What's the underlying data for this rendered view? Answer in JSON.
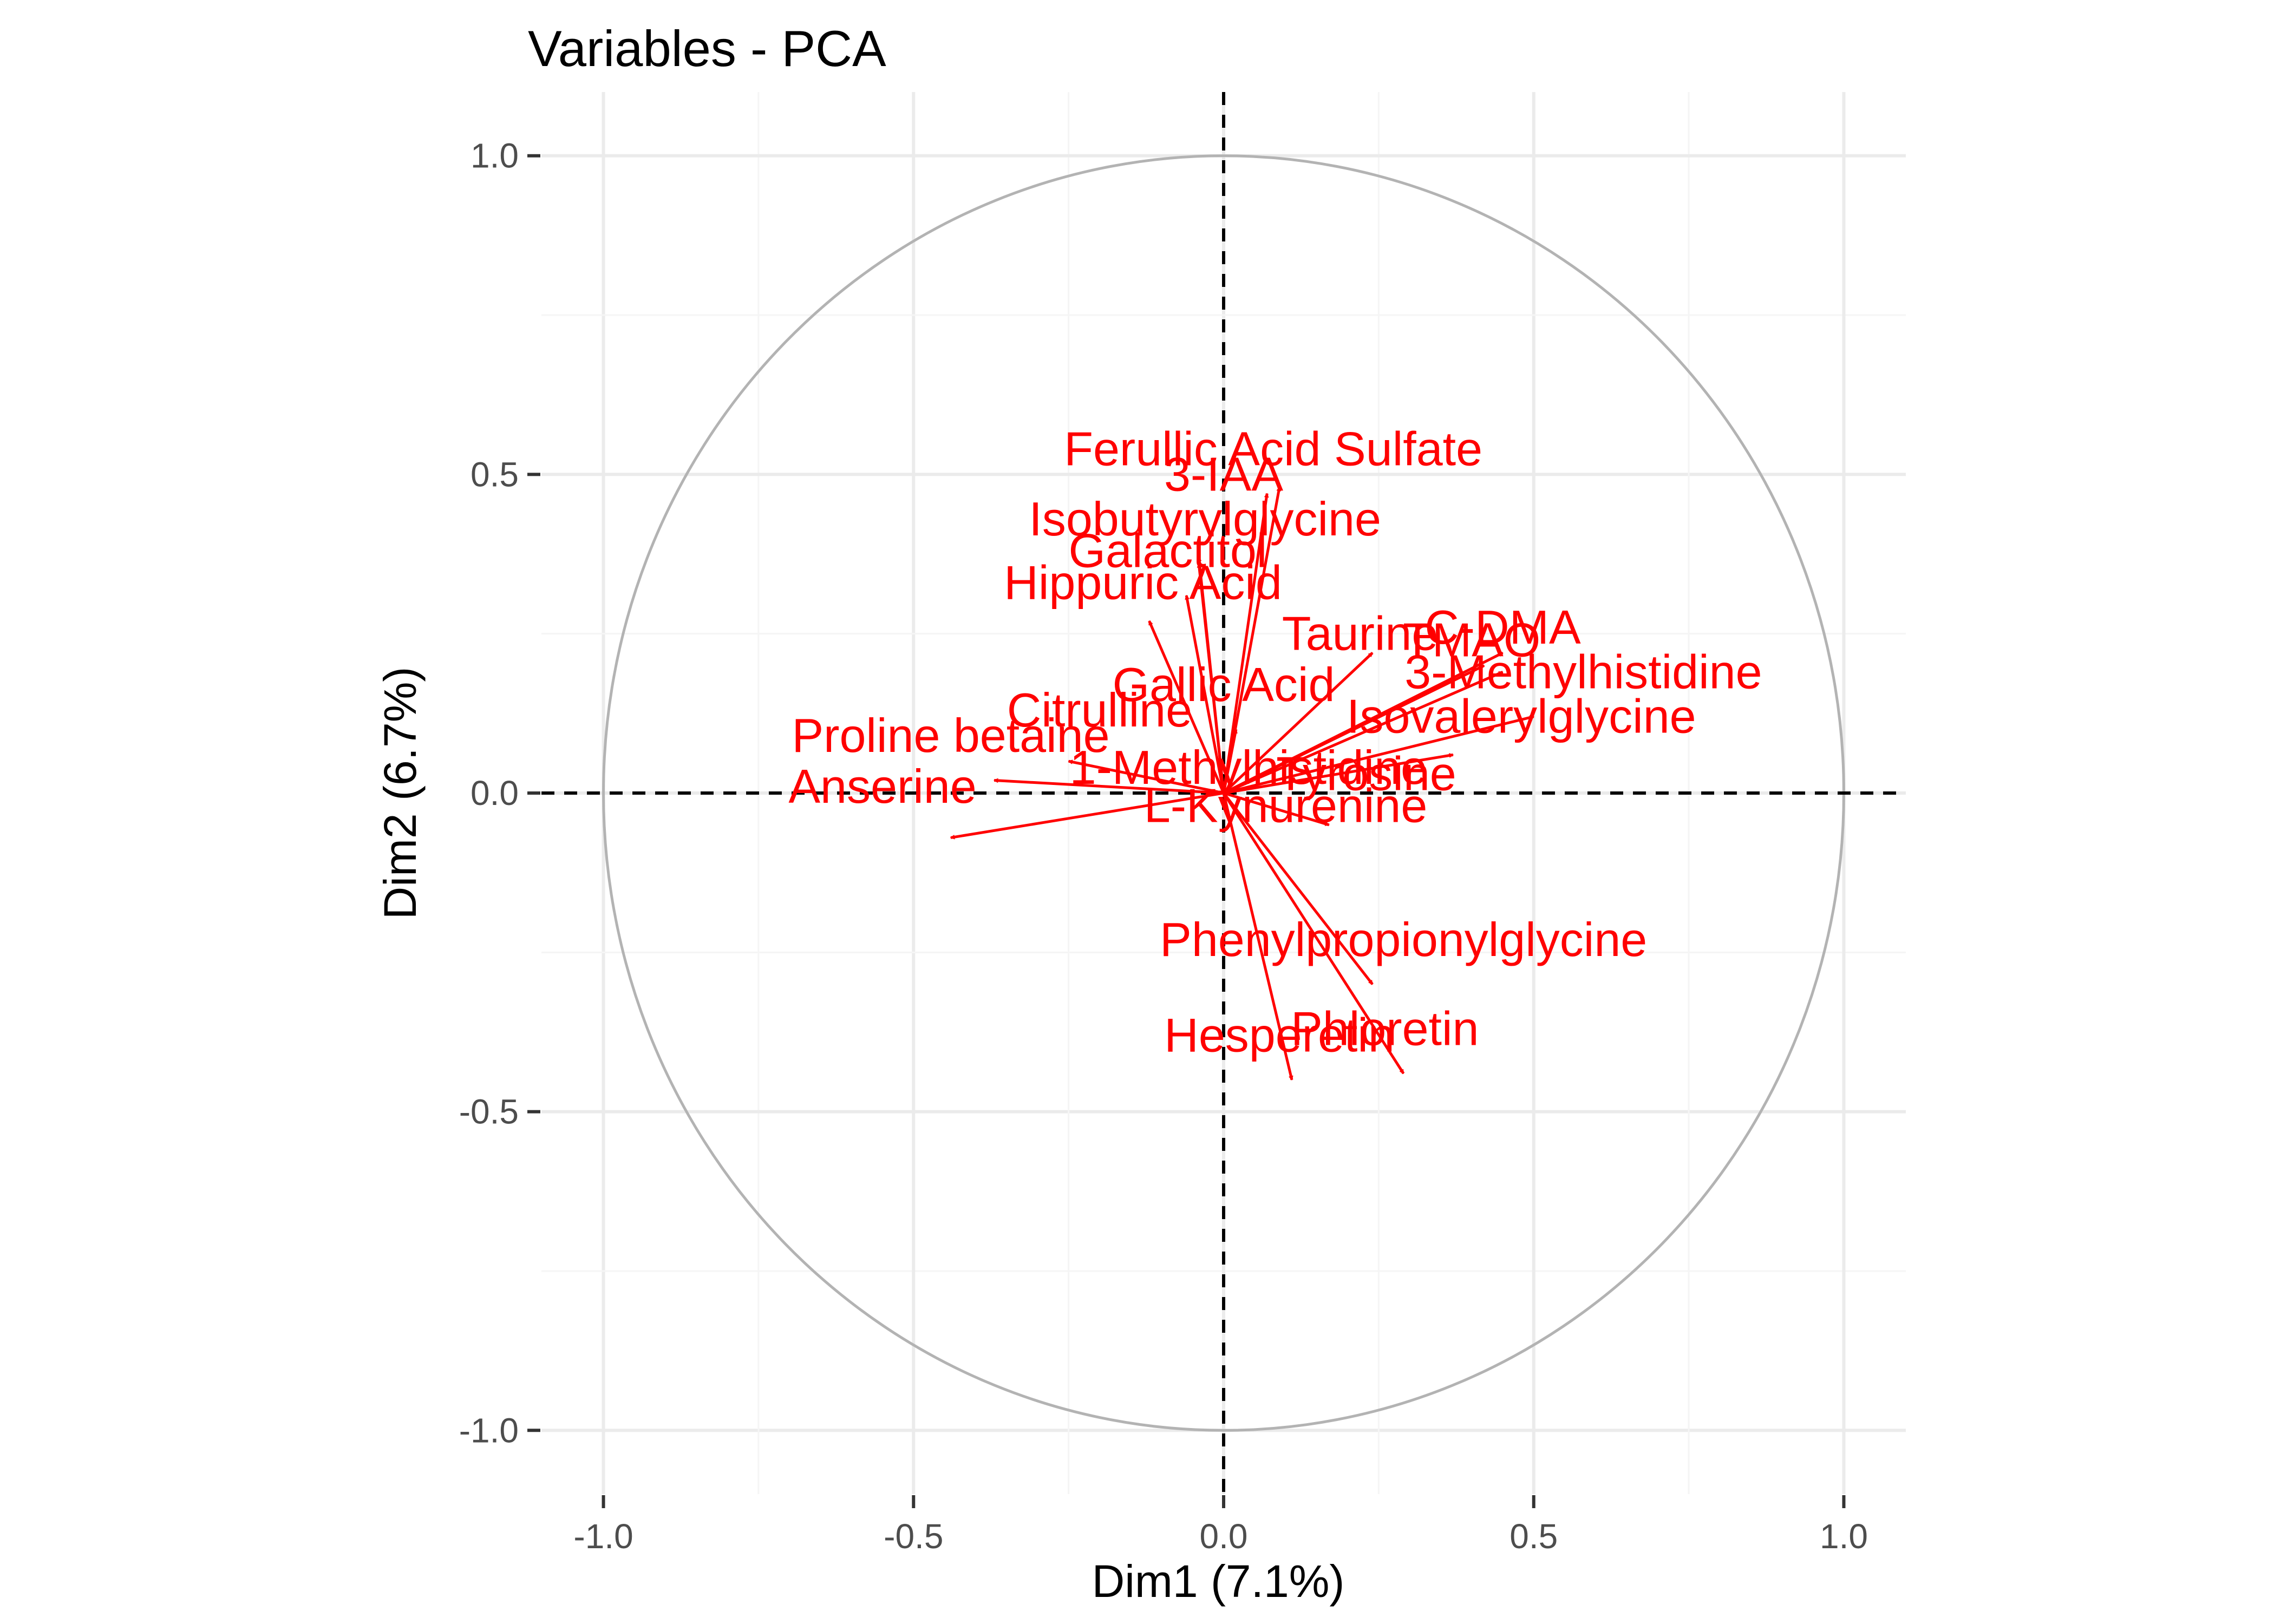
{
  "chart_data": {
    "type": "scatter",
    "title": "Variables - PCA",
    "xlabel": "Dim1 (7.1%)",
    "ylabel": "Dim2 (6.7%)",
    "xlim": [
      -1.1,
      1.1
    ],
    "ylim": [
      -1.1,
      1.1
    ],
    "x_ticks": [
      -1.0,
      -0.5,
      0.0,
      0.5,
      1.0
    ],
    "y_ticks": [
      -1.0,
      -0.5,
      0.0,
      0.5,
      1.0
    ],
    "x_tick_labels": [
      "-1.0",
      "-0.5",
      "0.0",
      "0.5",
      "1.0"
    ],
    "y_tick_labels": [
      "-1.0",
      "-0.5",
      "0.0",
      "0.5",
      "1.0"
    ],
    "grid": true,
    "correlation_circle": true,
    "reference_lines": [
      "x=0",
      "y=0"
    ],
    "colors": {
      "arrows": "#ff0000",
      "circle": "#b3b3b3",
      "grid_major": "#ebebeb",
      "grid_minor": "#f5f5f5",
      "title": "#000000",
      "tick_text": "#4d4d4d"
    },
    "variables": [
      {
        "name": "Ferullic Acid Sulfate",
        "x": 0.09,
        "y": 0.48,
        "label_x": 0.08,
        "label_y": 0.54
      },
      {
        "name": "3-IAA",
        "x": 0.07,
        "y": 0.47,
        "label_x": 0.0,
        "label_y": 0.5
      },
      {
        "name": "Isobutyrylglycine",
        "x": -0.04,
        "y": 0.37,
        "label_x": -0.03,
        "label_y": 0.43
      },
      {
        "name": "Galactitol",
        "x": -0.04,
        "y": 0.36,
        "label_x": -0.09,
        "label_y": 0.38
      },
      {
        "name": "Hippuric Acid",
        "x": -0.06,
        "y": 0.31,
        "label_x": -0.13,
        "label_y": 0.33
      },
      {
        "name": "Taurine",
        "x": 0.24,
        "y": 0.22,
        "label_x": 0.22,
        "label_y": 0.25
      },
      {
        "name": "C-DMA",
        "x": 0.45,
        "y": 0.22,
        "label_x": 0.45,
        "label_y": 0.26
      },
      {
        "name": "TMAO",
        "x": 0.42,
        "y": 0.2,
        "label_x": 0.4,
        "label_y": 0.24
      },
      {
        "name": "3-Methylhistidine",
        "x": 0.45,
        "y": 0.19,
        "label_x": 0.58,
        "label_y": 0.19
      },
      {
        "name": "Isovalerylglycine",
        "x": 0.5,
        "y": 0.12,
        "label_x": 0.48,
        "label_y": 0.12
      },
      {
        "name": "Gallic Acid",
        "x": 0.02,
        "y": 0.1,
        "label_x": 0.0,
        "label_y": 0.17
      },
      {
        "name": "Citrulline",
        "x": -0.12,
        "y": 0.27,
        "label_x": -0.2,
        "label_y": 0.13
      },
      {
        "name": "Proline betaine",
        "x": -0.37,
        "y": 0.02,
        "label_x": -0.44,
        "label_y": 0.09
      },
      {
        "name": "1-Methylhistidine",
        "x": -0.25,
        "y": 0.05,
        "label_x": 0.04,
        "label_y": 0.04
      },
      {
        "name": "Tyrosine",
        "x": 0.37,
        "y": 0.06,
        "label_x": 0.23,
        "label_y": 0.03
      },
      {
        "name": "Anserine",
        "x": -0.44,
        "y": -0.07,
        "label_x": -0.55,
        "label_y": 0.01
      },
      {
        "name": "L-Kynurenine",
        "x": 0.17,
        "y": -0.05,
        "label_x": 0.1,
        "label_y": -0.02
      },
      {
        "name": "Phenylpropionylglycine",
        "x": 0.24,
        "y": -0.3,
        "label_x": 0.29,
        "label_y": -0.23
      },
      {
        "name": "Phloretin",
        "x": 0.29,
        "y": -0.44,
        "label_x": 0.26,
        "label_y": -0.37
      },
      {
        "name": "Hesperetin",
        "x": 0.11,
        "y": -0.45,
        "label_x": 0.09,
        "label_y": -0.38
      }
    ]
  }
}
